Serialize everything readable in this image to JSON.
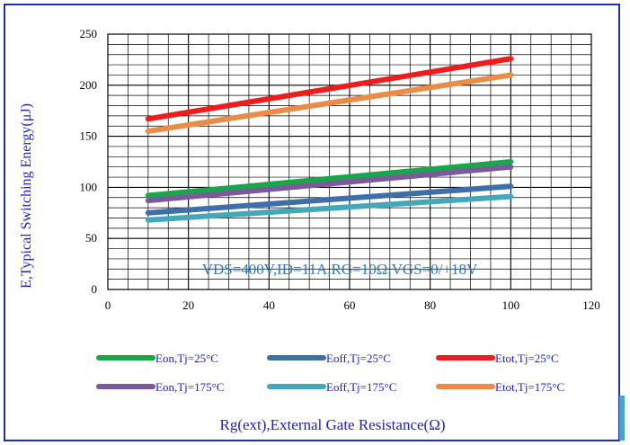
{
  "chart_data": {
    "type": "line",
    "xlabel": "Rg(ext),External Gate Resistance(Ω)",
    "ylabel": "E,Typical Switching Energy(μJ)",
    "annotation": "VDS=400V,ID=11A,RG=10Ω,VGS=0/+18V",
    "xlim": [
      0,
      120
    ],
    "ylim": [
      0,
      250
    ],
    "x_ticks": [
      "0",
      "20",
      "40",
      "60",
      "80",
      "100",
      "120"
    ],
    "y_ticks": [
      "0",
      "50",
      "100",
      "150",
      "200",
      "250"
    ],
    "grid": true,
    "legend_position": "bottom",
    "series": [
      {
        "name": "Eon,Tj=25°C",
        "color": "#1aa64a",
        "x": [
          10,
          100
        ],
        "y": [
          92,
          125
        ]
      },
      {
        "name": "Eoff,Tj=25°C",
        "color": "#3f6fa8",
        "x": [
          10,
          100
        ],
        "y": [
          75,
          101
        ]
      },
      {
        "name": "Etot,Tj=25°C",
        "color": "#ee1c1c",
        "x": [
          10,
          100
        ],
        "y": [
          167,
          226
        ]
      },
      {
        "name": "Eon,Tj=175°C",
        "color": "#7b5a9c",
        "x": [
          10,
          100
        ],
        "y": [
          87,
          120
        ]
      },
      {
        "name": "Eoff,Tj=175°C",
        "color": "#45a8b8",
        "x": [
          10,
          100
        ],
        "y": [
          68,
          91
        ]
      },
      {
        "name": "Etot,Tj=175°C",
        "color": "#eb8b45",
        "x": [
          10,
          100
        ],
        "y": [
          155,
          210
        ]
      }
    ]
  }
}
